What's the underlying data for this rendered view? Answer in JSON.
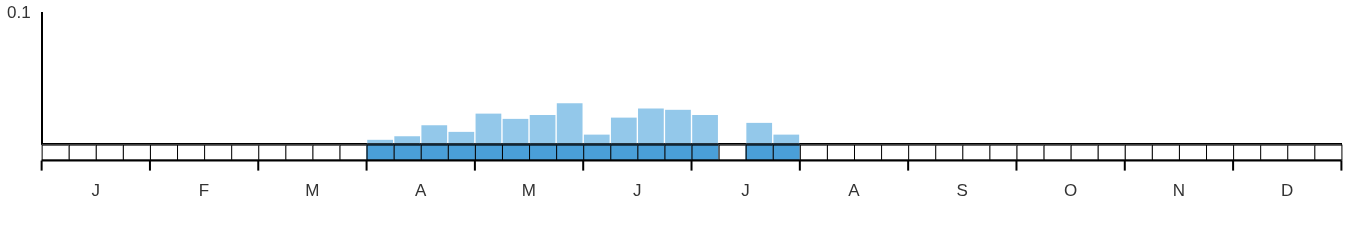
{
  "chart_data": {
    "type": "bar",
    "categories": [
      "J",
      null,
      null,
      null,
      "F",
      null,
      null,
      null,
      "M",
      null,
      null,
      null,
      "A",
      null,
      null,
      null,
      "M",
      null,
      null,
      null,
      "J",
      null,
      null,
      null,
      "J",
      null,
      null,
      null,
      "A",
      null,
      null,
      null,
      "S",
      null,
      null,
      null,
      "O",
      null,
      null,
      null,
      "N",
      null,
      null,
      null,
      "D",
      null,
      null,
      null
    ],
    "values": [
      0,
      0,
      0,
      0,
      0,
      0,
      0,
      0,
      0,
      0,
      0,
      0,
      0.003,
      0.0056,
      0.014,
      0.009,
      0.023,
      0.019,
      0.022,
      0.031,
      0.007,
      0.02,
      0.027,
      0.026,
      0.022,
      0,
      0.016,
      0.007,
      0,
      0,
      0,
      0,
      0,
      0,
      0,
      0,
      0,
      0,
      0,
      0,
      0,
      0,
      0,
      0,
      0,
      0,
      0,
      0
    ],
    "color": "#93c8ea",
    "ylim": [
      0,
      0.1
    ],
    "yticks": [
      0.1
    ],
    "grid": false
  }
}
